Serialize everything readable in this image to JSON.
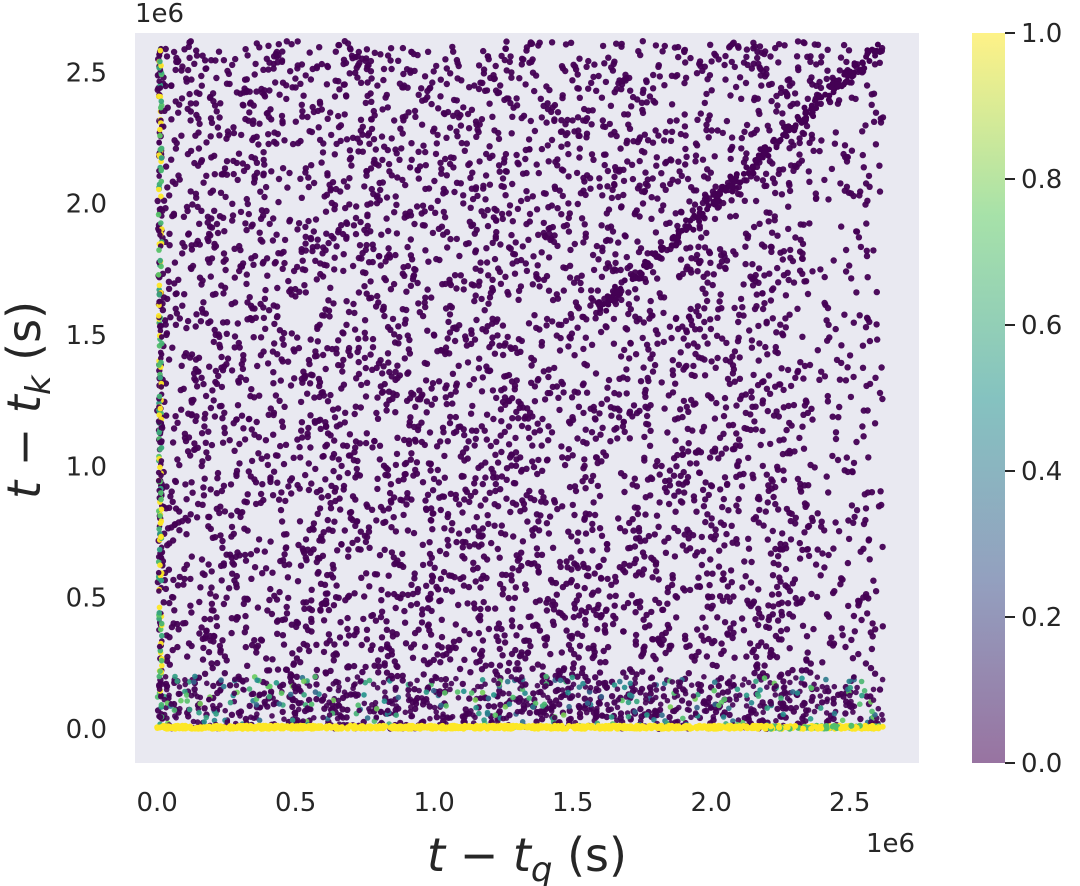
{
  "chart_data": {
    "type": "scatter",
    "xlabel": {
      "main": "t − t",
      "sub": "q",
      "unit": " (s)"
    },
    "ylabel": {
      "main": "t − t",
      "sub": "k",
      "unit": " (s)"
    },
    "x_offset_label": "1e6",
    "y_offset_label": "1e6",
    "xlim": [
      -0.08,
      2.75
    ],
    "ylim": [
      -0.13,
      2.65
    ],
    "x_ticks": [
      0.0,
      0.5,
      1.0,
      1.5,
      2.0,
      2.5
    ],
    "x_tick_labels": [
      "0.0",
      "0.5",
      "1.0",
      "1.5",
      "2.0",
      "2.5"
    ],
    "y_ticks": [
      0.0,
      0.5,
      1.0,
      1.5,
      2.0,
      2.5
    ],
    "y_tick_labels": [
      "0.0",
      "0.5",
      "1.0",
      "1.5",
      "2.0",
      "2.5"
    ],
    "grid": false,
    "background_color": "#e9e9f1",
    "point_color_scale": "viridis",
    "data_extent": {
      "x": [
        0.0,
        2.62
      ],
      "y": [
        0.0,
        2.62
      ]
    },
    "colorbar": {
      "range": [
        0.0,
        1.0
      ],
      "ticks": [
        0.0,
        0.2,
        0.4,
        0.6,
        0.8,
        1.0
      ],
      "tick_labels": [
        "0.0",
        "0.2",
        "0.4",
        "0.6",
        "0.8",
        "1.0"
      ],
      "colors": [
        "#440154",
        "#3b528b",
        "#21918c",
        "#5ec962",
        "#fde725"
      ],
      "alpha": 0.55,
      "placement": "right"
    },
    "highlights": [
      {
        "region": "bottom band y≈0",
        "value": 1.0
      },
      {
        "region": "left column x≈0",
        "value": 0.6
      },
      {
        "region": "near-bottom band",
        "value": 0.5
      }
    ]
  }
}
